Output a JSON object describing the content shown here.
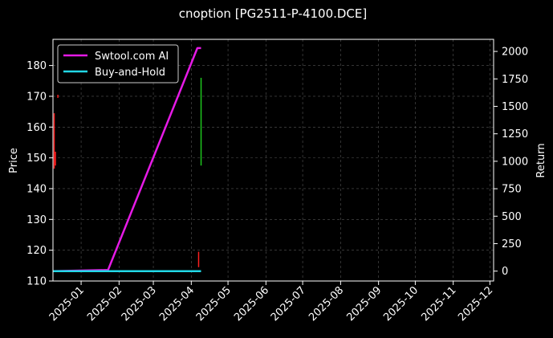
{
  "chart_data": {
    "type": "line",
    "title": "cnoption [PG2511-P-4100.DCE]",
    "ylabel": "Price",
    "y2label": "Return",
    "x_ticks": [
      "2025-01",
      "2025-02",
      "2025-03",
      "2025-04",
      "2025-05",
      "2025-06",
      "2025-07",
      "2025-08",
      "2025-09",
      "2025-10",
      "2025-11",
      "2025-12"
    ],
    "x_range": [
      "2024-12-09",
      "2025-12-04"
    ],
    "ylim": [
      110,
      188.5
    ],
    "y_ticks": [
      110,
      120,
      130,
      140,
      150,
      160,
      170,
      180
    ],
    "y2lim": [
      -90,
      2110
    ],
    "y2_ticks": [
      0,
      250,
      500,
      750,
      1000,
      1250,
      1500,
      1750,
      2000
    ],
    "grid": true,
    "legend_position": "top-left",
    "series": [
      {
        "name": "Swtool.com AI",
        "axis": "right",
        "color": "#e61ae6",
        "points": [
          [
            "2024-12-09",
            0
          ],
          [
            "2025-01-23",
            10
          ],
          [
            "2025-04-06",
            2030
          ],
          [
            "2025-04-09",
            2030
          ]
        ]
      },
      {
        "name": "Buy-and-Hold",
        "axis": "right",
        "color": "#22d8e6",
        "points": [
          [
            "2024-12-09",
            0
          ],
          [
            "2025-04-09",
            0
          ]
        ]
      }
    ],
    "candles": [
      {
        "date": "2024-12-10",
        "low": 146.5,
        "high": 164.5,
        "color": "#ff2020"
      },
      {
        "date": "2024-12-11",
        "low": 147.5,
        "high": 152.0,
        "color": "#ff2020"
      },
      {
        "date": "2024-12-13",
        "low": 169.5,
        "high": 170.5,
        "color": "#ff2020"
      },
      {
        "date": "2025-04-07",
        "low": 114.5,
        "high": 119.5,
        "color": "#ff2020"
      },
      {
        "date": "2025-04-09",
        "low": 147.5,
        "high": 176.0,
        "color": "#1ec81e"
      }
    ]
  },
  "colors": {
    "background": "#000000",
    "axis": "#ffffff",
    "grid": "#555555"
  }
}
